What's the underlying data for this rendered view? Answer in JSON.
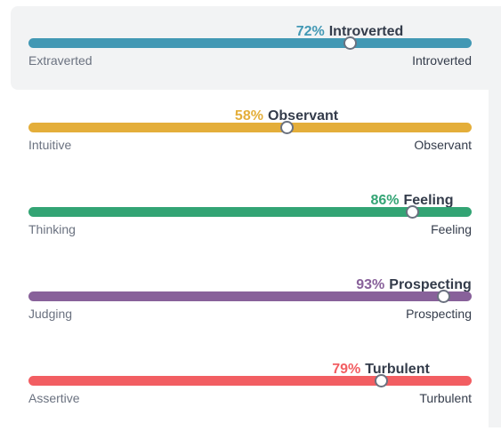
{
  "traits": [
    {
      "percent_label": "72%",
      "trait": "Introverted",
      "value": 0.725,
      "left_label": "Extraverted",
      "right_label": "Introverted",
      "color": "#4298b4",
      "selected": true
    },
    {
      "percent_label": "58%",
      "trait": "Observant",
      "value": 0.583,
      "left_label": "Intuitive",
      "right_label": "Observant",
      "color": "#e4ae3a"
    },
    {
      "percent_label": "86%",
      "trait": "Feeling",
      "value": 0.865,
      "left_label": "Thinking",
      "right_label": "Feeling",
      "color": "#33a474"
    },
    {
      "percent_label": "93%",
      "trait": "Prospecting",
      "value": 0.935,
      "left_label": "Judging",
      "right_label": "Prospecting",
      "color": "#88619a"
    },
    {
      "percent_label": "79%",
      "trait": "Turbulent",
      "value": 0.795,
      "left_label": "Assertive",
      "right_label": "Turbulent",
      "color": "#f25e62"
    }
  ]
}
